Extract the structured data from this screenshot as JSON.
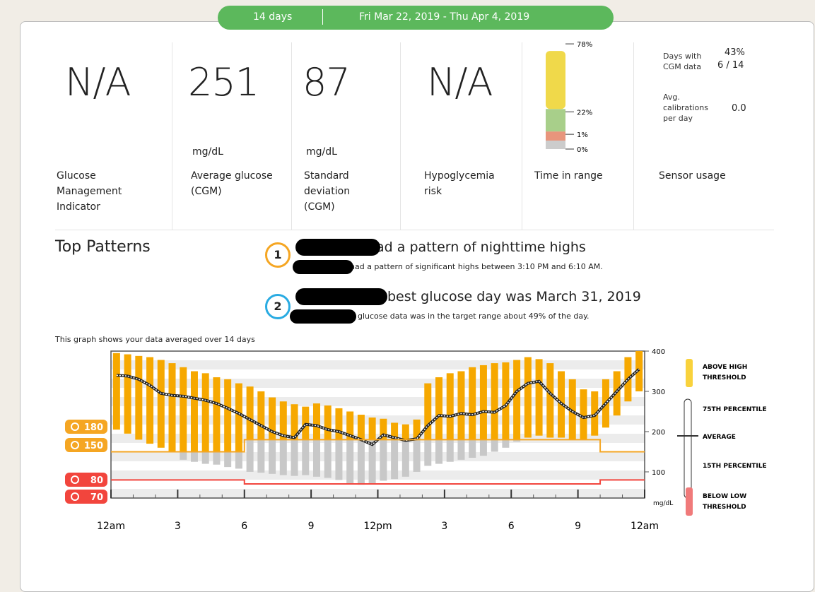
{
  "header": {
    "period": "14 days",
    "date_range": "Fri Mar 22, 2019 - Thu Apr 4, 2019"
  },
  "stats": [
    {
      "value": "N/A",
      "label": "Glucose Management Indicator"
    },
    {
      "value": 251,
      "unit": "mg/dL",
      "label": "Average glucose (CGM)"
    },
    {
      "value": 87,
      "unit": "mg/dL",
      "label": "Standard deviation (CGM)"
    },
    {
      "value": "N/A",
      "label": "Hypoglycemia risk"
    }
  ],
  "time_in_range": {
    "label": "Time in range",
    "values": [
      78,
      22,
      1,
      0
    ],
    "value_labels": [
      "78%",
      "22%",
      "1%",
      "0%"
    ],
    "colors": [
      "#f0d94a",
      "#a8cf8a",
      "#e8957c",
      "#cccccc"
    ]
  },
  "sensor_usage": {
    "days_label": "Days with CGM data",
    "percent": "43%",
    "days": "6 / 14",
    "calibrations_label": "Avg. calibrations per day",
    "calibrations": "0.0",
    "label": "Sensor usage"
  },
  "patterns": {
    "title": "Top Patterns",
    "items": [
      {
        "number": 1,
        "headline": "had a pattern of nighttime highs",
        "detail": "had a pattern of significant highs between 3:10 PM and 6:10 AM."
      },
      {
        "number": 2,
        "headline": "best glucose day was March 31, 2019",
        "detail": "glucose data was in the target range about 49% of the day."
      }
    ]
  },
  "chart_data": {
    "type": "bar",
    "title": "This graph shows your data averaged over 14 days",
    "x": [
      0,
      0.5,
      1,
      1.5,
      2,
      2.5,
      3,
      3.5,
      4,
      4.5,
      5,
      5.5,
      6,
      6.5,
      7,
      7.5,
      8,
      8.5,
      9,
      9.5,
      10,
      10.5,
      11,
      11.5,
      12,
      12.5,
      13,
      13.5,
      14,
      14.5,
      15,
      15.5,
      16,
      16.5,
      17,
      17.5,
      18,
      18.5,
      19,
      19.5,
      20,
      20.5,
      21,
      21.5,
      22,
      22.5,
      23,
      23.5
    ],
    "series": [
      {
        "name": "75TH PERCENTILE",
        "color": "#f6a800",
        "values": [
          395,
          392,
          388,
          385,
          378,
          370,
          360,
          350,
          345,
          335,
          330,
          320,
          312,
          300,
          285,
          275,
          268,
          262,
          270,
          265,
          258,
          250,
          242,
          235,
          232,
          222,
          218,
          230,
          320,
          335,
          345,
          350,
          360,
          365,
          370,
          372,
          378,
          385,
          380,
          370,
          350,
          330,
          305,
          300,
          330,
          350,
          385,
          400
        ]
      },
      {
        "name": "15TH PERCENTILE",
        "color": "#c8c8c8",
        "values": [
          205,
          195,
          180,
          170,
          160,
          150,
          130,
          125,
          120,
          118,
          112,
          108,
          100,
          98,
          95,
          92,
          90,
          92,
          88,
          85,
          80,
          72,
          68,
          72,
          78,
          82,
          88,
          100,
          115,
          120,
          125,
          130,
          135,
          140,
          150,
          160,
          175,
          185,
          190,
          185,
          185,
          180,
          180,
          190,
          210,
          240,
          275,
          300
        ]
      },
      {
        "name": "AVERAGE",
        "color": "#222222",
        "values": [
          340,
          338,
          330,
          315,
          295,
          290,
          288,
          283,
          278,
          270,
          258,
          245,
          230,
          215,
          200,
          190,
          185,
          218,
          215,
          205,
          200,
          190,
          180,
          168,
          192,
          185,
          178,
          182,
          215,
          240,
          238,
          245,
          242,
          250,
          248,
          265,
          300,
          320,
          325,
          295,
          270,
          250,
          235,
          240,
          270,
          300,
          330,
          355
        ]
      }
    ],
    "legend": {
      "above": "ABOVE HIGH THRESHOLD",
      "below": "BELOW LOW THRESHOLD",
      "above_color": "#f9d23c",
      "below_color": "#f07a7a"
    },
    "thresholds": {
      "day": {
        "start": 6,
        "end": 22,
        "high": 180,
        "low": 70
      },
      "night": {
        "high": 150,
        "low": 80
      },
      "high_color": "#f5a623",
      "low_color": "#f2453d"
    },
    "xlim": [
      0,
      24
    ],
    "xticks": [
      {
        "value": 0,
        "label": "12am"
      },
      3,
      6,
      9,
      {
        "value": 12,
        "label": "12pm"
      },
      {
        "value": 15,
        "label": "3"
      },
      {
        "value": 18,
        "label": "6"
      },
      {
        "value": 21,
        "label": "9"
      },
      {
        "value": 24,
        "label": "12am"
      }
    ],
    "ylim": [
      35,
      400
    ],
    "yticks": [
      100,
      200,
      300,
      400
    ],
    "ylabel": "mg/dL"
  }
}
